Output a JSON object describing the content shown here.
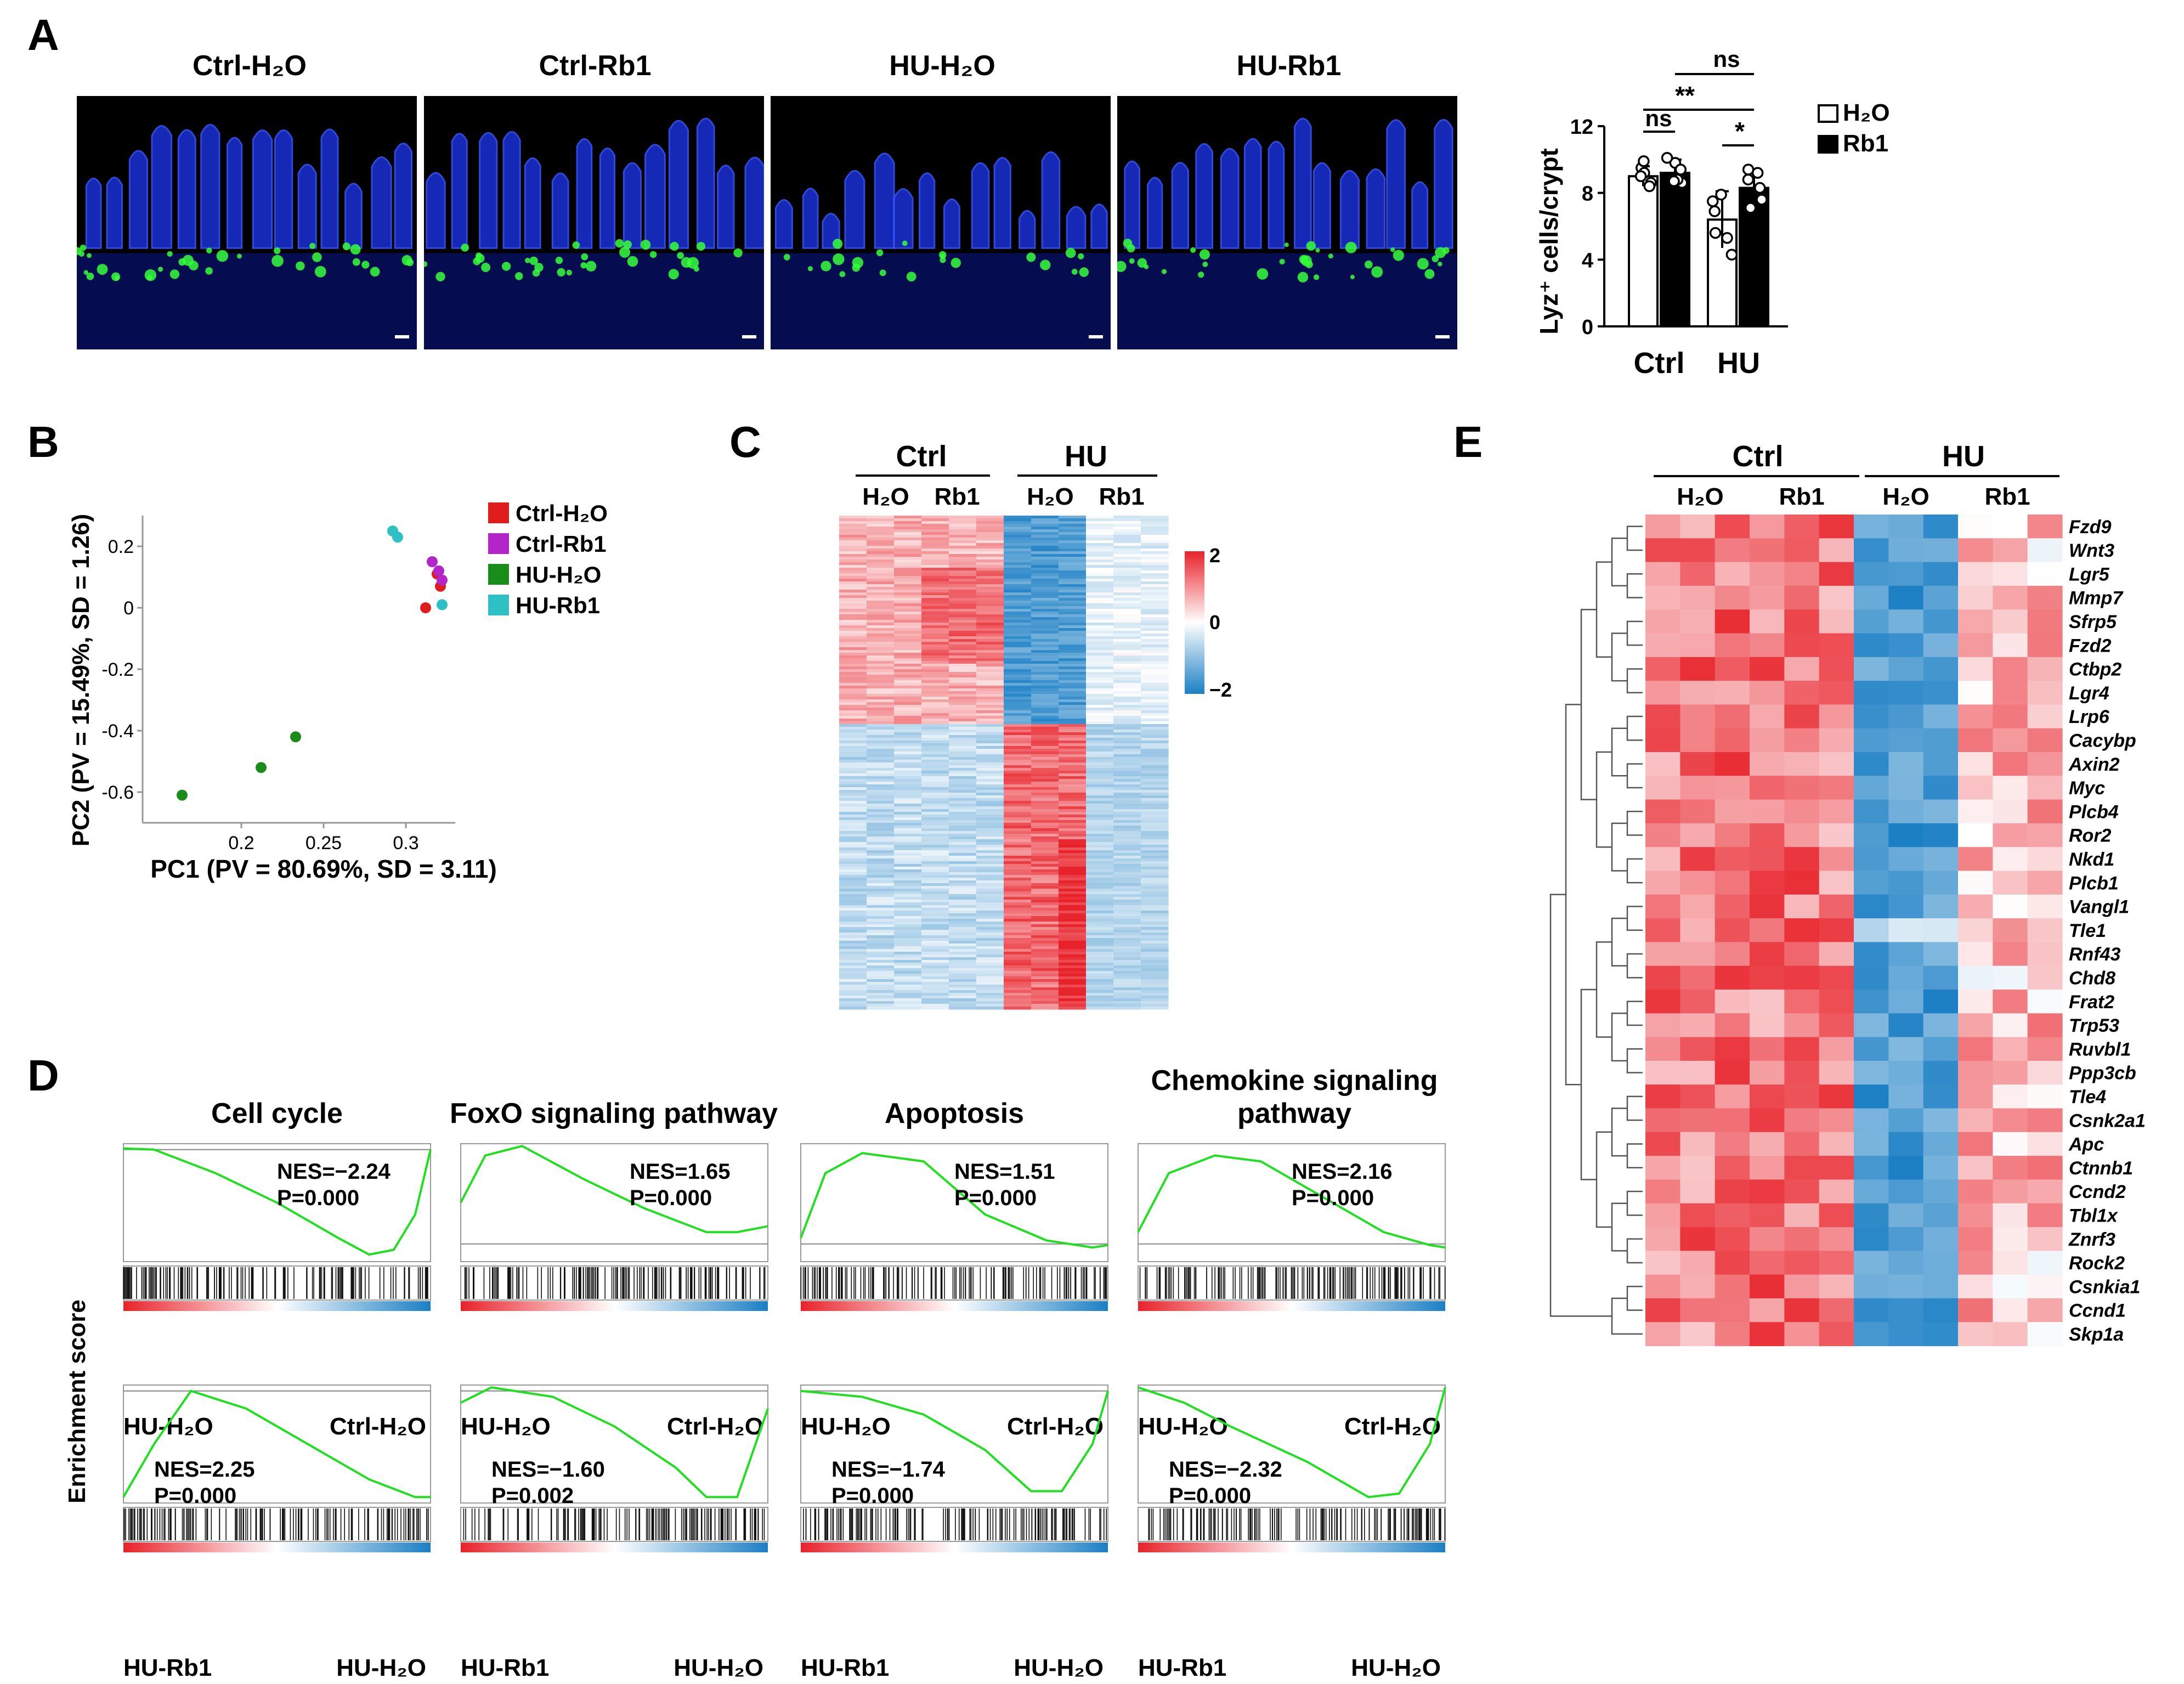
{
  "panelA": {
    "label": "A",
    "images": [
      {
        "title": "Ctrl-H₂O"
      },
      {
        "title": "Ctrl-Rb1"
      },
      {
        "title": "HU-H₂O"
      },
      {
        "title": "HU-Rb1"
      }
    ],
    "chart_data": {
      "type": "bar",
      "ylabel": "Lyz⁺ cells/crypt",
      "ylim": [
        0,
        12
      ],
      "yticks": [
        0,
        4,
        8,
        12
      ],
      "categories": [
        "Ctrl",
        "HU"
      ],
      "series": [
        {
          "name": "H₂O",
          "color": "#ffffff",
          "values": [
            9.0,
            6.4
          ],
          "sd": [
            0.6,
            1.7
          ],
          "points": [
            [
              9.5,
              8.6,
              9.9,
              8.4,
              9.2,
              9.0
            ],
            [
              7.5,
              5.6,
              4.3,
              7.9,
              6.9,
              5.3
            ]
          ]
        },
        {
          "name": "Rb1",
          "color": "#000000",
          "values": [
            9.2,
            8.3
          ],
          "sd": [
            0.8,
            1.1
          ],
          "points": [
            [
              9.8,
              8.6,
              10.1,
              8.8,
              9.4,
              8.7
            ],
            [
              9.4,
              7.1,
              8.8,
              9.2,
              7.6,
              8.3
            ]
          ]
        }
      ],
      "significance": [
        {
          "label": "ns",
          "from": "Ctrl-H₂O",
          "to": "Ctrl-Rb1"
        },
        {
          "label": "**",
          "from": "Ctrl-H₂O",
          "to": "HU-H₂O"
        },
        {
          "label": "ns",
          "from": "Ctrl-Rb1",
          "to": "HU-Rb1"
        },
        {
          "label": "*",
          "from": "HU-H₂O",
          "to": "HU-Rb1"
        }
      ]
    }
  },
  "panelB": {
    "label": "B",
    "chart_data": {
      "type": "scatter",
      "xlabel": "PC1 (PV = 80.69%, SD = 3.11)",
      "ylabel": "PC2 (PV = 15.49%, SD = 1.26)",
      "xlim": [
        0.14,
        0.33
      ],
      "ylim": [
        -0.7,
        0.3
      ],
      "xticks": [
        0.2,
        0.25,
        0.3
      ],
      "yticks": [
        0.2,
        0,
        -0.2,
        -0.4,
        -0.6
      ],
      "series": [
        {
          "name": "Ctrl-H₂O",
          "color": "#e01d1d",
          "points": [
            [
              0.319,
              0.11
            ],
            [
              0.321,
              0.07
            ],
            [
              0.312,
              0.0
            ]
          ]
        },
        {
          "name": "Ctrl-Rb1",
          "color": "#b324c9",
          "points": [
            [
              0.316,
              0.15
            ],
            [
              0.322,
              0.09
            ],
            [
              0.32,
              0.12
            ]
          ]
        },
        {
          "name": "HU-H₂O",
          "color": "#1a8c1a",
          "points": [
            [
              0.233,
              -0.42
            ],
            [
              0.212,
              -0.52
            ],
            [
              0.164,
              -0.61
            ]
          ]
        },
        {
          "name": "HU-Rb1",
          "color": "#2fc0c6",
          "points": [
            [
              0.292,
              0.25
            ],
            [
              0.295,
              0.23
            ],
            [
              0.322,
              0.01
            ]
          ]
        }
      ]
    }
  },
  "panelC": {
    "label": "C",
    "groups": [
      "Ctrl",
      "HU"
    ],
    "subgroups": [
      "H₂O",
      "Rb1",
      "H₂O",
      "Rb1"
    ],
    "colorbar": {
      "max": "2",
      "mid": "0",
      "min": "−2"
    }
  },
  "panelD": {
    "label": "D",
    "ylabel": "Enrichment score",
    "titles": [
      "Cell cycle",
      "FoxO signaling pathway",
      "Apoptosis",
      "Chemokine signaling pathway"
    ],
    "rows": [
      {
        "left": "HU-H₂O",
        "right": "Ctrl-H₂O",
        "plots": [
          {
            "nes": "NES=−2.24",
            "p": "P=0.000"
          },
          {
            "nes": "NES=1.65",
            "p": "P=0.000"
          },
          {
            "nes": "NES=1.51",
            "p": "P=0.000"
          },
          {
            "nes": "NES=2.16",
            "p": "P=0.000"
          }
        ]
      },
      {
        "left": "HU-Rb1",
        "right": "HU-H₂O",
        "plots": [
          {
            "nes": "NES=2.25",
            "p": "P=0.000"
          },
          {
            "nes": "NES=−1.60",
            "p": "P=0.002"
          },
          {
            "nes": "NES=−1.74",
            "p": "P=0.000"
          },
          {
            "nes": "NES=−2.32",
            "p": "P=0.000"
          }
        ]
      }
    ]
  },
  "panelE": {
    "label": "E",
    "groups": [
      "Ctrl",
      "HU"
    ],
    "subgroups": [
      "H₂O",
      "Rb1",
      "H₂O",
      "Rb1"
    ],
    "genes": [
      "Fzd9",
      "Wnt3",
      "Lgr5",
      "Mmp7",
      "Sfrp5",
      "Fzd2",
      "Ctbp2",
      "Lgr4",
      "Lrp6",
      "Cacybp",
      "Axin2",
      "Myc",
      "Plcb4",
      "Ror2",
      "Nkd1",
      "Plcb1",
      "Vangl1",
      "Tle1",
      "Rnf43",
      "Chd8",
      "Frat2",
      "Trp53",
      "Ruvbl1",
      "Ppp3cb",
      "Tle4",
      "Csnk2a1",
      "Apc",
      "Ctnnb1",
      "Ccnd2",
      "Tbl1x",
      "Znrf3",
      "Rock2",
      "Csnkia1",
      "Ccnd1",
      "Skp1a"
    ]
  }
}
